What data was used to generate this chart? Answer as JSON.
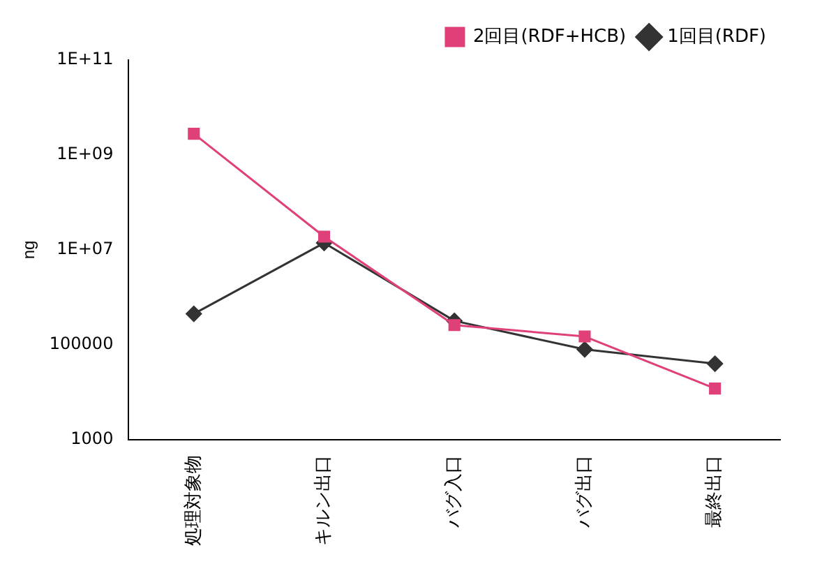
{
  "chart_data": {
    "type": "line",
    "ylabel": "ng",
    "log": "y",
    "categories": [
      "処理対象物",
      "キルン出口",
      "バグ入口",
      "バグ出口",
      "最終出口"
    ],
    "series": [
      {
        "name": "1回目(RDF)",
        "color": "#333333",
        "marker": "diamond",
        "values": [
          450000,
          14000000,
          320000,
          80000,
          40000
        ]
      },
      {
        "name": "2回目(RDF+HCB)",
        "color": "#e0407a",
        "marker": "square",
        "values": [
          2800000000,
          19000000,
          260000,
          150000,
          12000
        ]
      }
    ],
    "ylim": [
      1000,
      100000000000
    ],
    "yticks": [
      {
        "value": 1000,
        "label": "1000"
      },
      {
        "value": 100000,
        "label": "100000"
      },
      {
        "value": 10000000,
        "label": "1E+07"
      },
      {
        "value": 1000000000,
        "label": "1E+09"
      },
      {
        "value": 100000000000,
        "label": "1E+11"
      }
    ],
    "legend": "top right",
    "grid": false
  }
}
